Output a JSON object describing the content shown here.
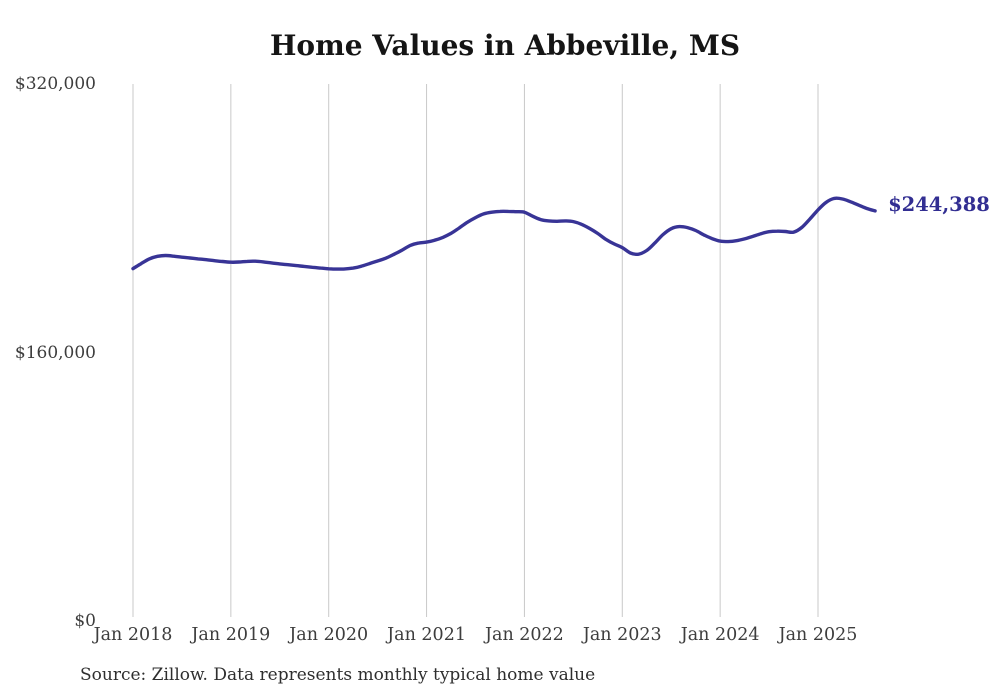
{
  "chart": {
    "title": "Home Values in Abbeville, MS",
    "end_label": "$244,388",
    "source_note": "Source: Zillow. Data represents monthly typical home value"
  },
  "chart_data": {
    "type": "line",
    "title": "Home Values in Abbeville, MS",
    "xlabel": "",
    "ylabel": "",
    "ylim": [
      0,
      320000
    ],
    "grid": "vertical-only",
    "legend": "none",
    "colors": {
      "line": "#383496",
      "end_label": "#322e92",
      "gridline": "#c9c9c9",
      "axis_text": "#3d3d3d",
      "title_text": "#151515"
    },
    "y_ticks": [
      {
        "label": "$320,000",
        "value": 320000
      },
      {
        "label": "$160,000",
        "value": 160000
      },
      {
        "label": "$0",
        "value": 0
      }
    ],
    "x_tick_labels": [
      "Jan 2018",
      "Jan 2019",
      "Jan 2020",
      "Jan 2021",
      "Jan 2022",
      "Jan 2023",
      "Jan 2024",
      "Jan 2025"
    ],
    "end_label": "$244,388",
    "source_note": "Source: Zillow. Data represents monthly typical home value",
    "series_end_value": 244388,
    "x": [
      "2018-01",
      "2018-02",
      "2018-03",
      "2018-04",
      "2018-05",
      "2018-06",
      "2018-07",
      "2018-08",
      "2018-09",
      "2018-10",
      "2018-11",
      "2018-12",
      "2019-01",
      "2019-02",
      "2019-03",
      "2019-04",
      "2019-05",
      "2019-06",
      "2019-07",
      "2019-08",
      "2019-09",
      "2019-10",
      "2019-11",
      "2019-12",
      "2020-01",
      "2020-02",
      "2020-03",
      "2020-04",
      "2020-05",
      "2020-06",
      "2020-07",
      "2020-08",
      "2020-09",
      "2020-10",
      "2020-11",
      "2020-12",
      "2021-01",
      "2021-02",
      "2021-03",
      "2021-04",
      "2021-05",
      "2021-06",
      "2021-07",
      "2021-08",
      "2021-09",
      "2021-10",
      "2021-11",
      "2021-12",
      "2022-01",
      "2022-02",
      "2022-03",
      "2022-04",
      "2022-05",
      "2022-06",
      "2022-07",
      "2022-08",
      "2022-09",
      "2022-10",
      "2022-11",
      "2022-12",
      "2023-01",
      "2023-02",
      "2023-03",
      "2023-04",
      "2023-05",
      "2023-06",
      "2023-07",
      "2023-08",
      "2023-09",
      "2023-10",
      "2023-11",
      "2023-12",
      "2024-01",
      "2024-02",
      "2024-03",
      "2024-04",
      "2024-05",
      "2024-06",
      "2024-07",
      "2024-08",
      "2024-09",
      "2024-10",
      "2024-11",
      "2024-12",
      "2025-01",
      "2025-02",
      "2025-03",
      "2025-04",
      "2025-05",
      "2025-06",
      "2025-07",
      "2025-08"
    ],
    "values": [
      210000,
      213000,
      215800,
      217300,
      217800,
      217400,
      216800,
      216300,
      215800,
      215300,
      214700,
      214200,
      213800,
      213900,
      214300,
      214400,
      214000,
      213400,
      212800,
      212300,
      211800,
      211300,
      210800,
      210300,
      209900,
      209700,
      209800,
      210300,
      211400,
      213000,
      214500,
      216200,
      218500,
      221000,
      223800,
      225200,
      225800,
      226900,
      228600,
      231000,
      234200,
      237600,
      240400,
      242600,
      243600,
      244100,
      244100,
      243900,
      243600,
      241200,
      239200,
      238400,
      238200,
      238400,
      238000,
      236400,
      233900,
      230900,
      227400,
      224700,
      222500,
      219300,
      218600,
      220800,
      225300,
      230300,
      233800,
      235000,
      234400,
      232700,
      230100,
      227900,
      226400,
      226100,
      226600,
      227700,
      229200,
      230800,
      232000,
      232300,
      232100,
      231700,
      234500,
      239500,
      245000,
      249500,
      251800,
      251500,
      249800,
      247800,
      245800,
      244388
    ]
  }
}
